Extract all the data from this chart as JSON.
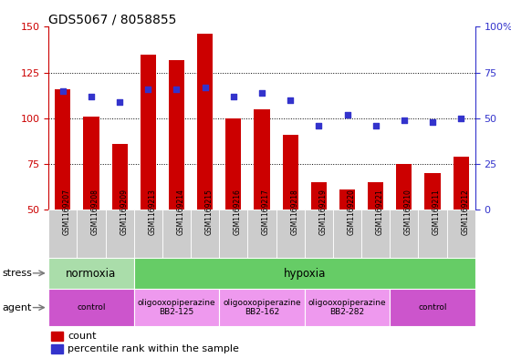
{
  "title": "GDS5067 / 8058855",
  "samples": [
    "GSM1169207",
    "GSM1169208",
    "GSM1169209",
    "GSM1169213",
    "GSM1169214",
    "GSM1169215",
    "GSM1169216",
    "GSM1169217",
    "GSM1169218",
    "GSM1169219",
    "GSM1169220",
    "GSM1169221",
    "GSM1169210",
    "GSM1169211",
    "GSM1169212"
  ],
  "counts": [
    116,
    101,
    86,
    135,
    132,
    146,
    100,
    105,
    91,
    65,
    61,
    65,
    75,
    70,
    79
  ],
  "percentiles": [
    65,
    62,
    59,
    66,
    66,
    67,
    62,
    64,
    60,
    46,
    52,
    46,
    49,
    48,
    50
  ],
  "ylim_left": [
    50,
    150
  ],
  "ylim_right": [
    0,
    100
  ],
  "yticks_left": [
    50,
    75,
    100,
    125,
    150
  ],
  "yticks_right": [
    0,
    25,
    50,
    75,
    100
  ],
  "ytick_labels_right": [
    "0",
    "25",
    "50",
    "75",
    "100%"
  ],
  "bar_color": "#cc0000",
  "dot_color": "#3333cc",
  "stress_row": [
    {
      "label": "normoxia",
      "start": 0,
      "end": 3,
      "color": "#aaddaa"
    },
    {
      "label": "hypoxia",
      "start": 3,
      "end": 15,
      "color": "#66cc66"
    }
  ],
  "agent_row": [
    {
      "label": "control",
      "start": 0,
      "end": 3,
      "color": "#cc55cc"
    },
    {
      "label": "oligooxopiperazine\nBB2-125",
      "start": 3,
      "end": 6,
      "color": "#ee99ee"
    },
    {
      "label": "oligooxopiperazine\nBB2-162",
      "start": 6,
      "end": 9,
      "color": "#ee99ee"
    },
    {
      "label": "oligooxopiperazine\nBB2-282",
      "start": 9,
      "end": 12,
      "color": "#ee99ee"
    },
    {
      "label": "control",
      "start": 12,
      "end": 15,
      "color": "#cc55cc"
    }
  ],
  "stress_label": "stress",
  "agent_label": "agent"
}
